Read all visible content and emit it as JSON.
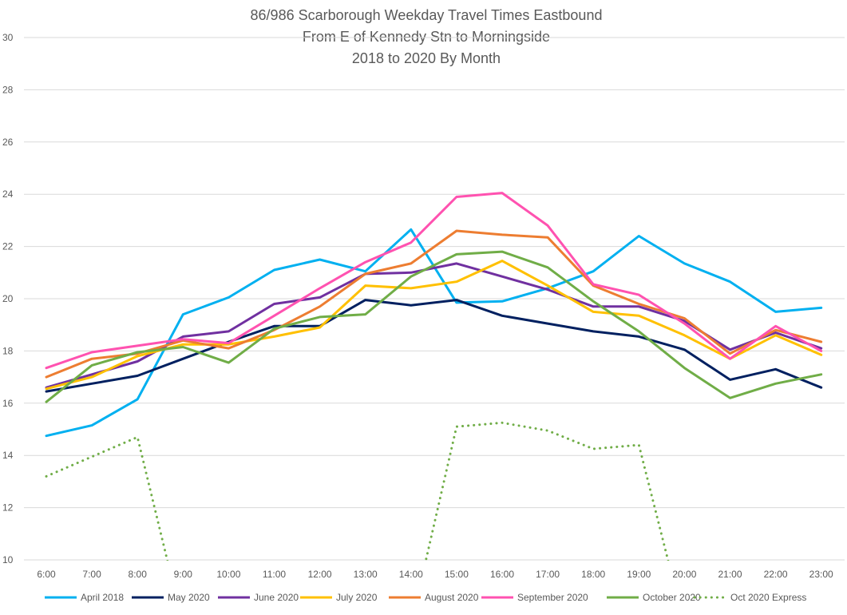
{
  "chart_data": {
    "type": "line",
    "title": [
      "86/986 Scarborough Weekday Travel Times Eastbound",
      "From E of Kennedy Stn to Morningside",
      "2018 to 2020 By Month"
    ],
    "xlabel": "",
    "ylabel": "",
    "categories": [
      "6:00",
      "7:00",
      "8:00",
      "9:00",
      "10:00",
      "11:00",
      "12:00",
      "13:00",
      "14:00",
      "15:00",
      "16:00",
      "17:00",
      "18:00",
      "19:00",
      "20:00",
      "21:00",
      "22:00",
      "23:00"
    ],
    "ylim": [
      10,
      30
    ],
    "yticks": [
      10,
      12,
      14,
      16,
      18,
      20,
      22,
      24,
      26,
      28,
      30
    ],
    "grid": true,
    "legend_position": "bottom",
    "series": [
      {
        "name": "April 2018",
        "color": "#00b0f0",
        "dashed": false,
        "values": [
          14.75,
          15.15,
          16.15,
          19.4,
          20.05,
          21.1,
          21.5,
          21.05,
          22.65,
          19.85,
          19.9,
          20.4,
          21.05,
          22.4,
          21.35,
          20.65,
          19.5,
          19.65
        ]
      },
      {
        "name": "May 2020",
        "color": "#002060",
        "dashed": false,
        "values": [
          16.45,
          16.75,
          17.05,
          17.7,
          18.35,
          18.95,
          18.95,
          19.95,
          19.75,
          19.95,
          19.35,
          19.05,
          18.75,
          18.55,
          18.05,
          16.9,
          17.3,
          16.6
        ]
      },
      {
        "name": "June 2020",
        "color": "#7030a0",
        "dashed": false,
        "values": [
          16.6,
          17.1,
          17.6,
          18.55,
          18.75,
          19.8,
          20.05,
          20.95,
          21.0,
          21.35,
          20.85,
          20.35,
          19.7,
          19.7,
          19.15,
          18.05,
          18.7,
          18.1
        ]
      },
      {
        "name": "July 2020",
        "color": "#ffc000",
        "dashed": false,
        "values": [
          16.55,
          17.0,
          17.8,
          18.25,
          18.25,
          18.55,
          18.9,
          20.5,
          20.4,
          20.65,
          21.45,
          20.5,
          19.5,
          19.35,
          18.6,
          17.7,
          18.6,
          17.85
        ]
      },
      {
        "name": "August 2020",
        "color": "#ed7d31",
        "dashed": false,
        "values": [
          17.0,
          17.7,
          17.9,
          18.4,
          18.1,
          18.8,
          19.7,
          20.95,
          21.35,
          22.6,
          22.45,
          22.35,
          20.5,
          19.8,
          19.25,
          17.9,
          18.8,
          18.35
        ]
      },
      {
        "name": "September 2020",
        "color": "#ff52b0",
        "dashed": false,
        "values": [
          17.35,
          17.95,
          18.2,
          18.45,
          18.3,
          19.35,
          20.4,
          21.4,
          22.15,
          23.9,
          24.05,
          22.8,
          20.55,
          20.15,
          19.05,
          17.7,
          18.95,
          18.0
        ]
      },
      {
        "name": "October 2020",
        "color": "#70ad47",
        "dashed": false,
        "values": [
          16.05,
          17.45,
          17.95,
          18.15,
          17.55,
          18.85,
          19.3,
          19.4,
          20.85,
          21.7,
          21.8,
          21.2,
          19.9,
          18.75,
          17.35,
          16.2,
          16.75,
          17.1
        ]
      },
      {
        "name": "Oct 2020 Express",
        "color": "#70ad47",
        "dashed": true,
        "values": [
          13.2,
          13.95,
          14.7,
          7.5,
          null,
          null,
          null,
          null,
          7.5,
          15.1,
          15.25,
          14.95,
          14.25,
          14.4,
          7.5,
          null,
          null,
          null
        ]
      }
    ]
  }
}
